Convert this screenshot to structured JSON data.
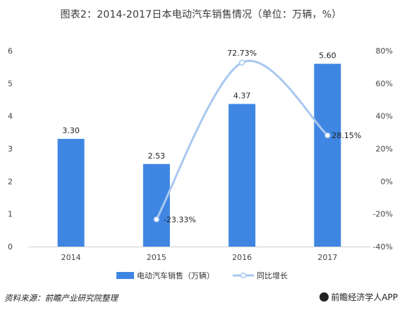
{
  "title": "图表2：2014-2017日本电动汽车销售情况（单位：万辆，%）",
  "footer": {
    "source": "资料来源：前瞻产业研究院整理",
    "brand": "前瞻经济学人APP"
  },
  "colors": {
    "bar": "#3f86e3",
    "line": "#a9c8ef",
    "axis_text": "#444444"
  },
  "chart_data": {
    "type": "bar",
    "categories": [
      "2014",
      "2015",
      "2016",
      "2017"
    ],
    "series": [
      {
        "name": "电动汽车销售（万辆）",
        "type": "bar",
        "axis": "left",
        "values": [
          3.3,
          2.53,
          4.37,
          5.6
        ],
        "labels": [
          "3.30",
          "2.53",
          "4.37",
          "5.60"
        ]
      },
      {
        "name": "同比增长",
        "type": "line",
        "axis": "right",
        "values": [
          null,
          -23.33,
          72.73,
          28.15
        ],
        "labels": [
          "",
          "-23.33%",
          "72.73%",
          "28.15%"
        ]
      }
    ],
    "y_left": {
      "min": 0,
      "max": 6,
      "ticks": [
        "0",
        "1",
        "2",
        "3",
        "4",
        "5",
        "6"
      ]
    },
    "y_right": {
      "min": -40,
      "max": 80,
      "ticks": [
        "-40%",
        "-20%",
        "0%",
        "20%",
        "40%",
        "60%",
        "80%"
      ]
    },
    "legend_position": "bottom",
    "grid": false
  }
}
